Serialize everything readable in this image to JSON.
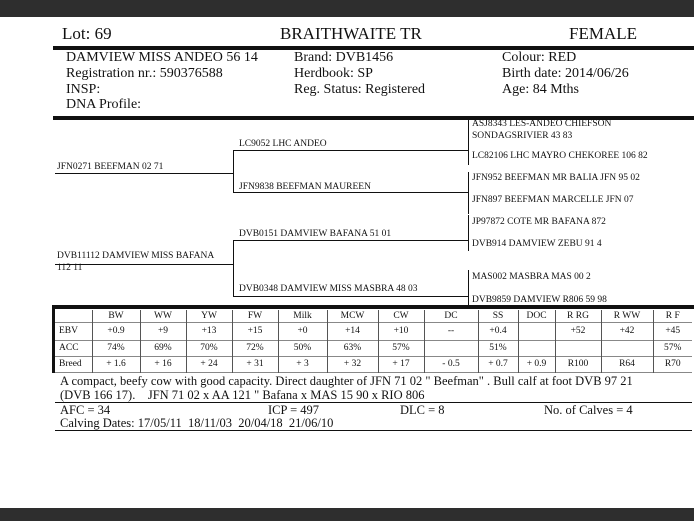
{
  "header": {
    "lot": "Lot:  69",
    "breeder": "BRAITHWAITE TR",
    "sex": "FEMALE"
  },
  "info": {
    "name": "DAMVIEW MISS ANDEO 56 14",
    "registration": "Registration nr.: 590376588",
    "insp": "INSP:",
    "dna": "DNA Profile:",
    "brand": "Brand:  DVB1456",
    "herdbook": "Herdbook: SP",
    "reg_status": "Reg. Status: Registered",
    "colour": "Colour:  RED",
    "birth_date": "Birth date:  2014/06/26",
    "age": "Age: 84 Mths"
  },
  "pedigree": {
    "sire": "JFN0271 BEEFMAN 02 71",
    "dam": "DVB11112 DAMVIEW MISS BAFANA 112 11",
    "ss": "LC9052 LHC ANDEO",
    "sd": "JFN9838 BEEFMAN MAUREEN",
    "ds": "DVB0151 DAMVIEW BAFANA 51 01",
    "dd": "DVB0348 DAMVIEW MISS MASBRA 48 03",
    "sss": "ASJ8343 LES-ANDEO CHIEFSON SONDAGSRIVIER 43 83",
    "ssd": "LC82106 LHC MAYRO CHEKOREE 106 82",
    "sds": "JFN952 BEEFMAN MR BALIA JFN 95 02",
    "sdd": "JFN897 BEEFMAN MARCELLE JFN 07",
    "dss": "JP97872 COTE MR BAFANA 872",
    "dsd": "DVB914 DAMVIEW ZEBU 91 4",
    "dds": "MAS002 MASBRA MAS 00 2",
    "ddd": "DVB9859 DAMVIEW R806 59 98"
  },
  "table": {
    "headers": [
      "",
      "BW",
      "WW",
      "YW",
      "FW",
      "Milk",
      "MCW",
      "CW",
      "DC",
      "SS",
      "DOC",
      "R RG",
      "R WW",
      "R F"
    ],
    "rows": [
      [
        "EBV",
        "+0.9",
        "+9",
        "+13",
        "+15",
        "+0",
        "+14",
        "+10",
        "--",
        "+0.4",
        "",
        "+52",
        "+42",
        "+45"
      ],
      [
        "ACC",
        "74%",
        "69%",
        "70%",
        "72%",
        "50%",
        "63%",
        "57%",
        "",
        "51%",
        "",
        "",
        "",
        "57%"
      ],
      [
        "Breed",
        "+ 1.6",
        "+ 16",
        "+ 24",
        "+ 31",
        "+ 3",
        "+ 32",
        "+ 17",
        "- 0.5",
        "+ 0.7",
        "+ 0.9",
        "R100",
        "R64",
        "R70"
      ]
    ]
  },
  "comments": {
    "line1": "A compact, beefy cow with good capacity. Direct daughter of JFN 71 02 \" Beefman\" . Bull calf at foot DVB 97 21",
    "line2": "(DVB 166 17).    JFN 71 02 x AA 121 \" Bafana x MAS 15 90 x RIO 806"
  },
  "stats": {
    "afc": "AFC = 34",
    "icp": "ICP = 497",
    "dlc": "DLC = 8",
    "calves": "No. of Calves = 4",
    "calving_dates": "Calving Dates: 17/05/11  18/11/03  20/04/18  21/06/10"
  }
}
